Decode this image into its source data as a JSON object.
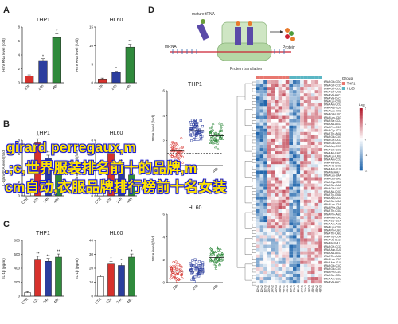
{
  "panels": {
    "A": {
      "letter": "A",
      "left": {
        "title": "THP1",
        "ylabel": "HEV RNA level (fold)",
        "categories": [
          "12h",
          "24h",
          "48h"
        ],
        "values": [
          1.0,
          3.2,
          6.5
        ],
        "yticks": [
          "0",
          "2",
          "4",
          "6",
          "8"
        ],
        "ymax": 8,
        "sig": [
          "",
          "*",
          "*"
        ]
      },
      "right": {
        "title": "HL60",
        "ylabel": "HEV RNA level (fold)",
        "categories": [
          "12h",
          "24h",
          "48h"
        ],
        "values": [
          1.0,
          2.8,
          9.6
        ],
        "yticks": [
          "0",
          "5",
          "10",
          "15"
        ],
        "ymax": 15,
        "sig": [
          "",
          "*",
          "**"
        ]
      }
    },
    "B": {
      "letter": "B",
      "left": {
        "title": "THP1",
        "ylabel": "IL-1β mRNA level (fold)",
        "categories": [
          "CTR",
          "12h",
          "24h",
          "48h"
        ],
        "values": [
          1.0,
          7.6,
          5.4,
          4.1
        ],
        "yticks": [
          "0",
          "2",
          "4",
          "6",
          "8"
        ],
        "ymax": 8,
        "sig": [
          "",
          "**",
          "**",
          "**"
        ]
      },
      "right": {
        "title": "HL60",
        "ylabel": "IL-1β mRNA level (fold)",
        "categories": [
          "CTR",
          "12h",
          "24h",
          "48h"
        ],
        "values": [
          1.0,
          6.1,
          4.3,
          3.0
        ],
        "yticks": [
          "0",
          "2",
          "4",
          "6",
          "8"
        ],
        "ymax": 8,
        "sig": [
          "",
          "*",
          "*",
          "*"
        ]
      }
    },
    "C": {
      "letter": "C",
      "left": {
        "title": "THP1",
        "ylabel": "IL-1β (pg/ml)",
        "categories": [
          "CTR",
          "12h",
          "24h",
          "48h"
        ],
        "values": [
          50,
          530,
          500,
          560
        ],
        "yticks": [
          "0",
          "200",
          "400",
          "600",
          "800"
        ],
        "ymax": 800,
        "sig": [
          "",
          "**",
          "**",
          "**"
        ]
      },
      "right": {
        "title": "HL60",
        "ylabel": "IL-1β (pg/ml)",
        "categories": [
          "CTR",
          "12h",
          "24h",
          "48h"
        ],
        "values": [
          14,
          23,
          22,
          28
        ],
        "yticks": [
          "0",
          "10",
          "20",
          "30",
          "40"
        ],
        "ymax": 40,
        "sig": [
          "",
          "*",
          "*",
          "*"
        ]
      }
    },
    "D": {
      "letter": "D",
      "schematic": {
        "mature_trna": "mature tRNA",
        "mrna": "mRNA",
        "protein": "Protein",
        "caption": "Protein translation"
      },
      "dot_top": {
        "title": "THP1",
        "ylabel": "tRNA level (fold)",
        "categories": [
          "12h",
          "24h",
          "48h"
        ],
        "yticks": [
          "0",
          "2",
          "4",
          "6"
        ]
      },
      "dot_bottom": {
        "title": "HL60",
        "ylabel": "tRNA level (fold)",
        "categories": [
          "12h",
          "24h",
          "48h"
        ],
        "yticks": [
          "0",
          "2",
          "4",
          "6"
        ]
      },
      "legend": {
        "title": "Group",
        "items": [
          "THP1",
          "HL60"
        ],
        "colors": [
          "#e8776f",
          "#5ab6c4"
        ]
      },
      "colorbar": {
        "title": "Log₂",
        "ticks": [
          "2",
          "1",
          "0",
          "-1",
          "-2"
        ]
      },
      "heatmap_cols": [
        "12h-1",
        "12h-2",
        "12h-3",
        "24h-1",
        "24h-2",
        "24h-3",
        "48h-1",
        "48h-2",
        "48h-3",
        "12h-1",
        "12h-2",
        "12h-3",
        "24h-1",
        "24h-2",
        "24h-3",
        "48h-1",
        "48h-2",
        "48h-3"
      ],
      "heatmap_rows": [
        "tRNA-Glu-GGC",
        "tRNA-Gly-CCC",
        "tRNA-Gly-GCC",
        "tRNA-Gly-UCC",
        "tRNA-Val-AAC",
        "tRNA-Val-CAC",
        "tRNA-Lys-CUU",
        "tRNA-Arg-UCU",
        "tRNA-Asp-GUC",
        "tRNA-Leu-AAG",
        "tRNA-Glu-UUC",
        "tRNA-Leu-CAG",
        "tRNA-Ser-GCU",
        "tRNA-Ala-AGC",
        "tRNA-Pro-CGG",
        "tRNA-Cys-GCA",
        "tRNA-Thr-AGU",
        "tRNA-Gln-CUG",
        "tRNA-Gly-UCC",
        "tRNA-Gln-UUG",
        "tRNA-Arg-CCG",
        "tRNA-Glu-CUC",
        "tRNA-Ala-UGC",
        "tRNA-Lys-UUU",
        "tRNA-Arg-CCU",
        "tRNA-Val-UAC",
        "tRNA-His-GUG",
        "tRNA-Asn-GUU",
        "tRNA-Ile-AAU",
        "tRNA-Leu-UAA",
        "tRNA-Leu-UAG",
        "tRNA-Cys-GCA",
        "tRNA-Ser-AGA",
        "tRNA-Glu-UUC",
        "tRNA-Ala-CGC",
        "tRNA-Tyr-GUA",
        "tRNA-Arg-UCG",
        "tRNA-Ser-UGA",
        "tRNA-Leu-CAA",
        "tRNA-Phe-GAA",
        "tRNA-Thr-CGU",
        "tRNA-Pro-AGG",
        "tRNA-Met-CAU",
        "tRNA-Ser-CGA",
        "tRNA-Arg-ACG",
        "tRNA-Lys-CUU",
        "tRNA-Pro-UGG",
        "tRNA-Thr-UGU",
        "tRNA-Trp-CCA",
        "tRNA-Val-CAC",
        "tRNA-Ile-UAU",
        "tRNA-Gly-CCC",
        "tRNA-Asp-GUC",
        "tRNA-Ala-AGC",
        "tRNA-Thr-AGU",
        "tRNA-Leu-CAG",
        "tRNA-Asn-GUU",
        "tRNA-Glu-CUC",
        "tRNA-Gln-CUG",
        "tRNA-Pro-CGG",
        "tRNA-Ser-GCU",
        "tRNA-Arg-CCU",
        "tRNA-Val-AAC"
      ]
    }
  },
  "bar_color_ctr": "#ffffff",
  "bar_color_12h": "#d7312c",
  "bar_color_24h": "#2c3e9e",
  "bar_color_48h": "#2f8a3c",
  "watermark": [
    "girard perregaux,m",
    ".;c,世界服装排名前十的品牌,m",
    "cm自动,衣服品牌排行榜前十名女装"
  ]
}
